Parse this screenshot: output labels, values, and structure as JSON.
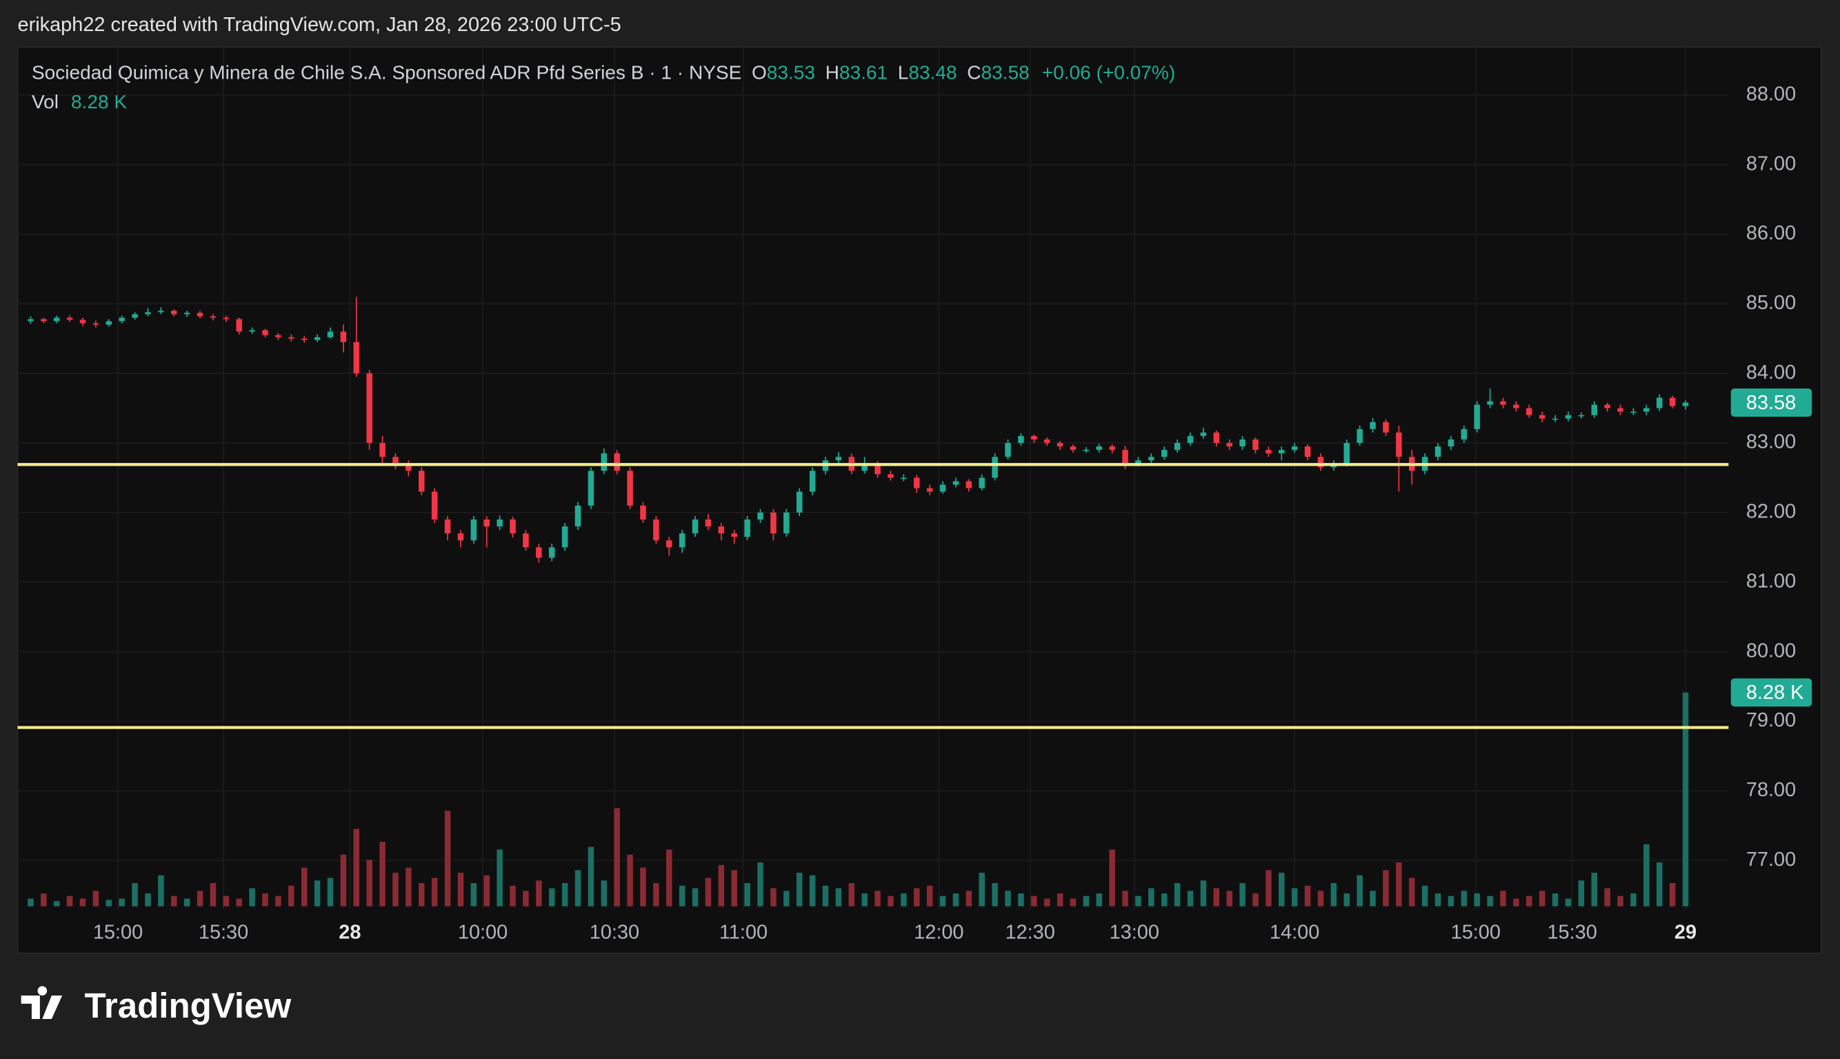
{
  "header": {
    "attribution": "erikaph22 created with TradingView.com, Jan 28, 2026 23:00 UTC-5"
  },
  "legend": {
    "name": "Sociedad Quimica y Minera de Chile S.A. Sponsored ADR Pfd Series B · 1 · NYSE",
    "items": [
      {
        "label": "O",
        "value": "83.53"
      },
      {
        "label": "H",
        "value": "83.61"
      },
      {
        "label": "L",
        "value": "83.48"
      },
      {
        "label": "C",
        "value": "83.58"
      }
    ],
    "change": "+0.06 (+0.07%)",
    "volume_label": "Vol",
    "volume_value": "8.28 K"
  },
  "chart_data": {
    "type": "candlestick",
    "up_color": "#22ab94",
    "down_color": "#f23645",
    "volume_up_color": "#1b6f64",
    "volume_down_color": "#8a2a33",
    "ylim": [
      76.29,
      88.69
    ],
    "yticks": [
      {
        "value": 88,
        "label": "88.00"
      },
      {
        "value": 87,
        "label": "87.00"
      },
      {
        "value": 86,
        "label": "86.00"
      },
      {
        "value": 85,
        "label": "85.00"
      },
      {
        "value": 84,
        "label": "84.00"
      },
      {
        "value": 83,
        "label": "83.00"
      },
      {
        "value": 82,
        "label": "82.00"
      },
      {
        "value": 81,
        "label": "81.00"
      },
      {
        "value": 80,
        "label": "80.00"
      },
      {
        "value": 79,
        "label": "79.00"
      },
      {
        "value": 78,
        "label": "78.00"
      },
      {
        "value": 77,
        "label": "77.00"
      }
    ],
    "xlim": [
      -1,
      130.3
    ],
    "xticks": [
      {
        "value": 6.7,
        "label": "15:00"
      },
      {
        "value": 14.8,
        "label": "15:30"
      },
      {
        "value": 24.5,
        "label": "28"
      },
      {
        "value": 34.7,
        "label": "10:00"
      },
      {
        "value": 44.8,
        "label": "10:30"
      },
      {
        "value": 54.7,
        "label": "11:00"
      },
      {
        "value": 69.7,
        "label": "12:00"
      },
      {
        "value": 76.7,
        "label": "12:30"
      },
      {
        "value": 84.7,
        "label": "13:00"
      },
      {
        "value": 97,
        "label": "14:00"
      },
      {
        "value": 110.9,
        "label": "15:00"
      },
      {
        "value": 118.3,
        "label": "15:30"
      },
      {
        "value": 127,
        "label": "29"
      }
    ],
    "grid": true,
    "hlines": [
      82.69,
      78.91
    ],
    "hline_color": "#f3eb8c",
    "price_tag": {
      "value": 83.58,
      "label": "83.58"
    },
    "volume_tag": {
      "value": 8280,
      "label": "8.28 K"
    },
    "vlim": [
      0,
      10000
    ],
    "open": [
      84.75,
      84.78,
      84.75,
      84.8,
      84.77,
      84.72,
      84.7,
      84.75,
      84.8,
      84.85,
      84.88,
      84.9,
      84.85,
      84.87,
      84.82,
      84.8,
      84.78,
      84.6,
      84.62,
      84.55,
      84.52,
      84.5,
      84.48,
      84.52,
      84.6,
      84.45,
      84.0,
      83.0,
      82.8,
      82.7,
      82.6,
      82.3,
      81.9,
      81.7,
      81.6,
      81.9,
      81.8,
      81.9,
      81.7,
      81.5,
      81.35,
      81.5,
      81.8,
      82.1,
      82.6,
      82.85,
      82.6,
      82.1,
      81.9,
      81.6,
      81.5,
      81.7,
      81.9,
      81.8,
      81.7,
      81.65,
      81.9,
      82.0,
      81.7,
      82.0,
      82.3,
      82.6,
      82.75,
      82.8,
      82.6,
      82.7,
      82.55,
      82.5,
      82.5,
      82.35,
      82.3,
      82.4,
      82.45,
      82.35,
      82.5,
      82.8,
      83.0,
      83.1,
      83.05,
      83.0,
      82.95,
      82.9,
      82.9,
      82.95,
      82.9,
      82.7,
      82.75,
      82.8,
      82.9,
      83.0,
      83.1,
      83.15,
      83.0,
      82.95,
      83.05,
      82.9,
      82.85,
      82.9,
      82.95,
      82.8,
      82.65,
      82.7,
      83.0,
      83.2,
      83.3,
      83.15,
      82.8,
      82.6,
      82.8,
      82.95,
      83.05,
      83.2,
      83.55,
      83.6,
      83.55,
      83.5,
      83.4,
      83.35,
      83.35,
      83.4,
      83.4,
      83.55,
      83.5,
      83.45,
      83.45,
      83.5,
      83.65,
      83.53
    ],
    "high": [
      84.82,
      84.8,
      84.83,
      84.83,
      84.8,
      84.76,
      84.78,
      84.83,
      84.88,
      84.94,
      84.95,
      84.92,
      84.9,
      84.9,
      84.85,
      84.83,
      84.8,
      84.66,
      84.64,
      84.58,
      84.56,
      84.54,
      84.56,
      84.66,
      84.7,
      85.1,
      84.05,
      83.1,
      82.85,
      82.75,
      82.65,
      82.35,
      81.95,
      81.75,
      81.95,
      81.95,
      81.96,
      81.94,
      81.75,
      81.55,
      81.55,
      81.85,
      82.15,
      82.65,
      82.92,
      82.9,
      82.65,
      82.15,
      81.95,
      81.65,
      81.75,
      81.95,
      81.98,
      81.85,
      81.75,
      81.95,
      82.05,
      82.05,
      82.05,
      82.35,
      82.65,
      82.8,
      82.87,
      82.85,
      82.8,
      82.74,
      82.6,
      82.55,
      82.54,
      82.4,
      82.45,
      82.5,
      82.48,
      82.55,
      82.85,
      83.05,
      83.14,
      83.12,
      83.08,
      83.03,
      82.98,
      82.94,
      82.99,
      82.98,
      82.96,
      82.8,
      82.85,
      82.95,
      83.05,
      83.15,
      83.22,
      83.18,
      83.05,
      83.1,
      83.08,
      82.95,
      82.95,
      83.0,
      82.98,
      82.85,
      82.75,
      83.05,
      83.25,
      83.36,
      83.34,
      83.25,
      82.9,
      82.85,
      83.0,
      83.1,
      83.25,
      83.6,
      83.78,
      83.65,
      83.6,
      83.55,
      83.45,
      83.4,
      83.45,
      83.44,
      83.6,
      83.58,
      83.55,
      83.5,
      83.55,
      83.7,
      83.68,
      83.61
    ],
    "low": [
      84.71,
      84.72,
      84.72,
      84.74,
      84.68,
      84.66,
      84.67,
      84.72,
      84.77,
      84.82,
      84.85,
      84.82,
      84.81,
      84.79,
      84.76,
      84.74,
      84.56,
      84.57,
      84.52,
      84.48,
      84.46,
      84.44,
      84.45,
      84.5,
      84.3,
      83.95,
      82.9,
      82.7,
      82.62,
      82.52,
      82.25,
      81.85,
      81.6,
      81.5,
      81.55,
      81.5,
      81.75,
      81.64,
      81.45,
      81.28,
      81.3,
      81.45,
      81.75,
      82.05,
      82.55,
      82.55,
      82.05,
      81.85,
      81.55,
      81.38,
      81.42,
      81.65,
      81.75,
      81.6,
      81.55,
      81.6,
      81.85,
      81.6,
      81.65,
      81.95,
      82.25,
      82.55,
      82.7,
      82.55,
      82.56,
      82.5,
      82.46,
      82.45,
      82.28,
      82.25,
      82.27,
      82.36,
      82.3,
      82.32,
      82.46,
      82.76,
      82.96,
      83.0,
      82.96,
      82.9,
      82.86,
      82.86,
      82.86,
      82.85,
      82.62,
      82.66,
      82.7,
      82.76,
      82.86,
      82.96,
      83.06,
      82.95,
      82.9,
      82.9,
      82.85,
      82.8,
      82.75,
      82.86,
      82.75,
      82.6,
      82.6,
      82.66,
      82.96,
      83.15,
      83.1,
      82.3,
      82.4,
      82.55,
      82.75,
      82.9,
      83.0,
      83.15,
      83.5,
      83.5,
      83.45,
      83.36,
      83.3,
      83.3,
      83.31,
      83.35,
      83.36,
      83.45,
      83.4,
      83.4,
      83.4,
      83.46,
      83.5,
      83.48
    ],
    "close": [
      84.78,
      84.75,
      84.8,
      84.77,
      84.72,
      84.7,
      84.75,
      84.8,
      84.85,
      84.88,
      84.9,
      84.85,
      84.87,
      84.82,
      84.8,
      84.78,
      84.6,
      84.62,
      84.55,
      84.52,
      84.5,
      84.48,
      84.52,
      84.6,
      84.45,
      84.0,
      83.0,
      82.8,
      82.7,
      82.6,
      82.3,
      81.9,
      81.7,
      81.6,
      81.9,
      81.8,
      81.9,
      81.7,
      81.5,
      81.35,
      81.5,
      81.8,
      82.1,
      82.6,
      82.85,
      82.6,
      82.1,
      81.9,
      81.6,
      81.5,
      81.7,
      81.9,
      81.8,
      81.7,
      81.65,
      81.9,
      82.0,
      81.7,
      82.0,
      82.3,
      82.6,
      82.75,
      82.8,
      82.6,
      82.7,
      82.55,
      82.5,
      82.5,
      82.35,
      82.3,
      82.4,
      82.45,
      82.35,
      82.5,
      82.8,
      83.0,
      83.1,
      83.05,
      83.0,
      82.95,
      82.9,
      82.9,
      82.95,
      82.9,
      82.7,
      82.75,
      82.8,
      82.9,
      83.0,
      83.1,
      83.15,
      83.0,
      82.95,
      83.05,
      82.9,
      82.85,
      82.9,
      82.95,
      82.8,
      82.65,
      82.7,
      83.0,
      83.2,
      83.3,
      83.15,
      82.8,
      82.6,
      82.8,
      82.95,
      83.05,
      83.2,
      83.55,
      83.6,
      83.55,
      83.5,
      83.4,
      83.35,
      83.35,
      83.4,
      83.4,
      83.55,
      83.5,
      83.45,
      83.45,
      83.5,
      83.65,
      83.53,
      83.58
    ],
    "volume": [
      300,
      500,
      200,
      400,
      300,
      600,
      250,
      300,
      900,
      500,
      1200,
      400,
      300,
      600,
      900,
      400,
      300,
      700,
      500,
      400,
      800,
      1500,
      1000,
      1100,
      2000,
      3000,
      1800,
      2500,
      1300,
      1500,
      900,
      1100,
      3700,
      1300,
      900,
      1200,
      2200,
      800,
      600,
      1000,
      700,
      900,
      1400,
      2300,
      1000,
      3800,
      2000,
      1500,
      900,
      2200,
      800,
      700,
      1100,
      1600,
      1400,
      900,
      1700,
      700,
      600,
      1300,
      1200,
      800,
      700,
      900,
      500,
      600,
      400,
      500,
      700,
      800,
      400,
      500,
      600,
      1300,
      900,
      600,
      500,
      400,
      300,
      500,
      300,
      400,
      500,
      2200,
      600,
      400,
      700,
      500,
      900,
      600,
      1000,
      700,
      600,
      900,
      500,
      1400,
      1300,
      700,
      800,
      600,
      900,
      500,
      1200,
      600,
      1400,
      1700,
      1100,
      800,
      500,
      400,
      600,
      500,
      400,
      600,
      300,
      400,
      600,
      500,
      300,
      1000,
      1300,
      700,
      400,
      500,
      2400,
      1700,
      900,
      8280
    ]
  },
  "footer": {
    "logo_text": "TradingView"
  }
}
